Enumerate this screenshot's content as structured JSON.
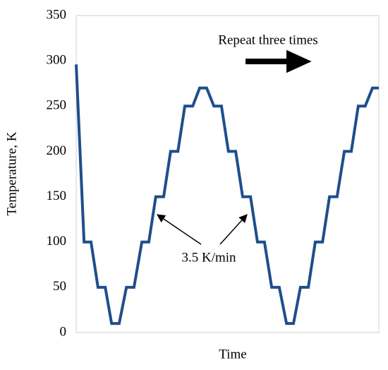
{
  "chart_data": {
    "type": "line",
    "y_label": "Temperature, K",
    "x_label": "Time",
    "annotations": [
      "Repeat three times",
      "3.5 K/min"
    ],
    "x": [
      0,
      2.6,
      4.9,
      7.2,
      9.6,
      11.7,
      14.2,
      16.6,
      19.1,
      21.7,
      24.0,
      26.3,
      28.9,
      31.2,
      33.6,
      35.9,
      38.5,
      40.8,
      43.1,
      45.5,
      48.0,
      50.3,
      52.7,
      55.0,
      57.6,
      59.9,
      62.2,
      64.6,
      67.1,
      69.5,
      71.8,
      74.1,
      76.7,
      79.0,
      81.4,
      83.7,
      86.2,
      88.6,
      90.9,
      93.2,
      95.5,
      97.9,
      100
    ],
    "series": [
      {
        "color": "#1f4e8c",
        "values": [
          296,
          100,
          100,
          50,
          50,
          10,
          10,
          50,
          50,
          100,
          100,
          150,
          150,
          200,
          200,
          250,
          250,
          270,
          270,
          250,
          250,
          200,
          200,
          150,
          150,
          100,
          100,
          50,
          50,
          10,
          10,
          50,
          50,
          100,
          100,
          150,
          150,
          200,
          200,
          250,
          250,
          270,
          270
        ]
      }
    ],
    "xlim": [
      0,
      100
    ],
    "ylim": [
      0,
      350
    ],
    "yticks": [
      0,
      50,
      100,
      150,
      200,
      250,
      300,
      350
    ],
    "grid": false
  }
}
